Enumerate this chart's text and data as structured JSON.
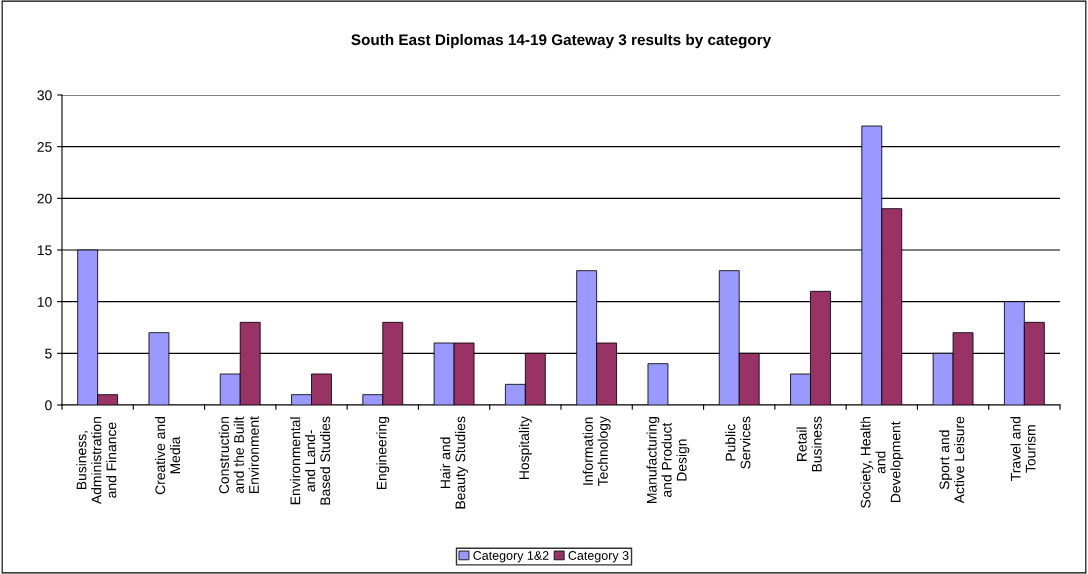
{
  "chart_data": {
    "type": "bar",
    "title": "South East Diplomas 14-19 Gateway 3 results by category",
    "categories": [
      "Business,\nAdministration\nand Finance",
      "Creative and\nMedia",
      "Construction\nand the Built\nEnvironment",
      "Environmental\nand Land-\nBased Studies",
      "Engineering",
      "Hair and\nBeauty Studies",
      "Hospitality",
      "Information\nTechnology",
      "Manufacturing\nand Product\nDesign",
      "Public\nServices",
      "Retail\nBusiness",
      "Society, Health\nand\nDevelopment",
      "Sport and\nActive Leisure",
      "Travel and\nTourism"
    ],
    "series": [
      {
        "name": "Category 1&2",
        "color": "#9999ff",
        "values": [
          15,
          7,
          3,
          1,
          1,
          6,
          2,
          13,
          4,
          13,
          3,
          27,
          5,
          10
        ]
      },
      {
        "name": "Category 3",
        "color": "#993366",
        "values": [
          1,
          null,
          8,
          3,
          8,
          6,
          5,
          6,
          null,
          5,
          11,
          19,
          7,
          8
        ]
      }
    ],
    "ylim": [
      0,
      30
    ],
    "yticks": [
      0,
      5,
      10,
      15,
      20,
      25,
      30
    ],
    "grid": "y",
    "legend": "bottom"
  }
}
